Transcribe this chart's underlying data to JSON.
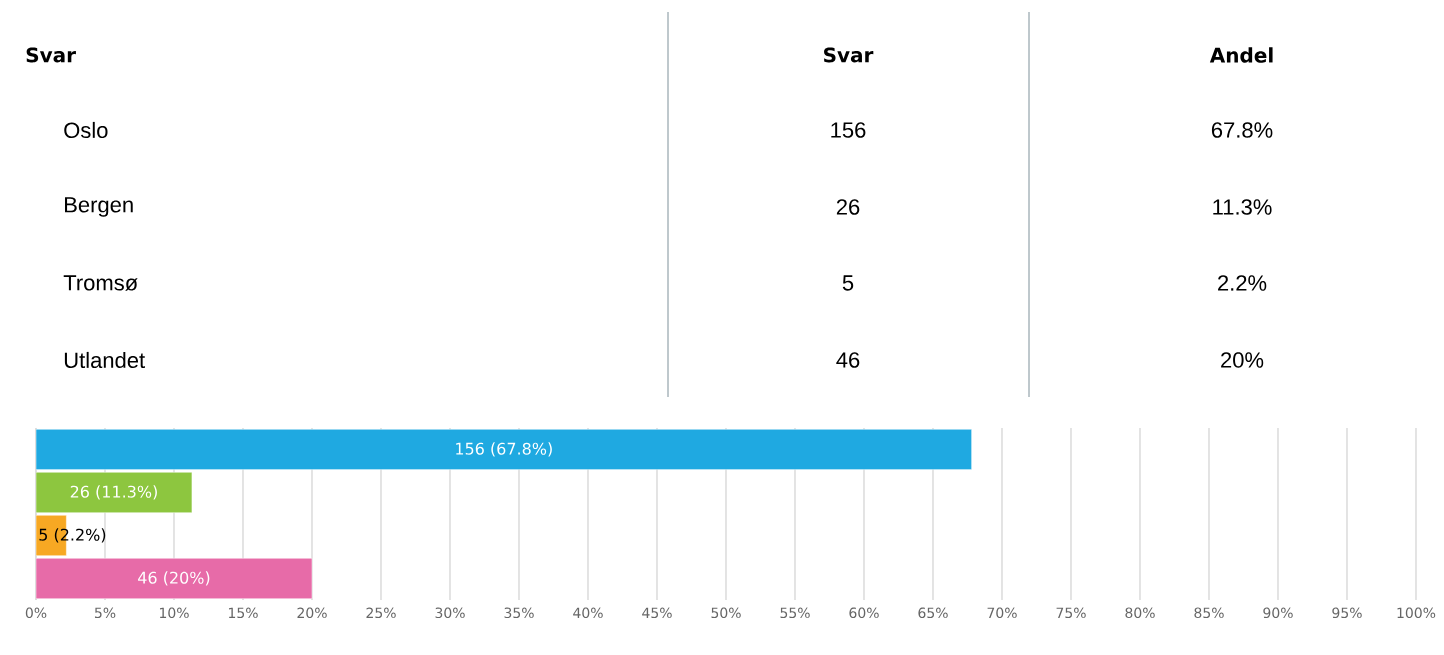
{
  "chart_data": {
    "type": "bar",
    "orientation": "horizontal",
    "categories": [
      null,
      null,
      null,
      null
    ],
    "values": [
      67.8,
      11.3,
      2.2,
      20
    ],
    "colors": [
      "#1fa9e1",
      "#8dc63f",
      "#f7a823",
      "#e76ba8"
    ],
    "value_labels": [
      "156 (67.8%)",
      "26 (11.3%)",
      "5 (2.2%)",
      "46 (20%)"
    ],
    "annotations": [
      "Svar",
      "Svar",
      "Andel",
      "Oslo",
      "156",
      "67.8%",
      "Bergen",
      "26",
      "11.3%",
      "Tromsø",
      "5",
      "2.2%",
      "Utlandet",
      "46",
      "20%"
    ],
    "xlim": [
      0,
      100
    ],
    "xticks": [
      {
        "value": 0,
        "label": "0%"
      },
      {
        "value": 5,
        "label": "5%"
      },
      {
        "value": 10,
        "label": "10%"
      },
      {
        "value": 15,
        "label": "15%"
      },
      {
        "value": 20,
        "label": "20%"
      },
      {
        "value": 25,
        "label": "25%"
      },
      {
        "value": 30,
        "label": "30%"
      },
      {
        "value": 35,
        "label": "35%"
      },
      {
        "value": 40,
        "label": "40%"
      },
      {
        "value": 45,
        "label": "45%"
      },
      {
        "value": 50,
        "label": "50%"
      },
      {
        "value": 55,
        "label": "55%"
      },
      {
        "value": 60,
        "label": "60%"
      },
      {
        "value": 65,
        "label": "65%"
      },
      {
        "value": 70,
        "label": "70%"
      },
      {
        "value": 75,
        "label": "75%"
      },
      {
        "value": 80,
        "label": "80%"
      },
      {
        "value": 85,
        "label": "85%"
      },
      {
        "value": 90,
        "label": "90%"
      },
      {
        "value": 95,
        "label": "95%"
      },
      {
        "value": 100,
        "label": "100%"
      }
    ],
    "grid": "x",
    "tick_labels": "x"
  }
}
